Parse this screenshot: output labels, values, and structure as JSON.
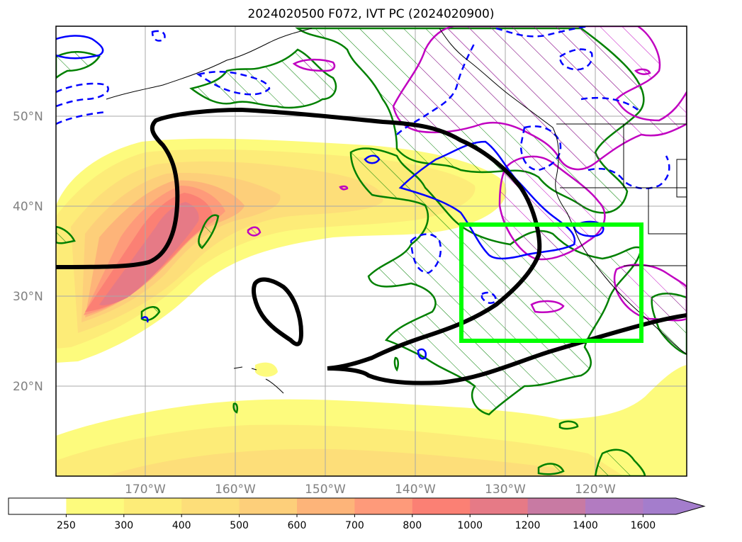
{
  "title": "2024020500 F072, IVT PC (2024020900)",
  "lat_labels": [
    "50°N",
    "40°N",
    "30°N",
    "20°N"
  ],
  "lon_labels": [
    "170°W",
    "160°W",
    "150°W",
    "140°W",
    "130°W",
    "120°W"
  ],
  "colorbar": {
    "ticks": [
      "250",
      "300",
      "400",
      "500",
      "600",
      "700",
      "800",
      "1000",
      "1200",
      "1400",
      "1600"
    ],
    "colors": [
      "#ffffff",
      "#fdfb7d",
      "#fdec78",
      "#fdde79",
      "#fdcf7a",
      "#fdb479",
      "#fe9a7a",
      "#fb8074",
      "#e67a86",
      "#c87aa3",
      "#b27bc1",
      "#a47dcc"
    ],
    "extend": "max"
  },
  "map": {
    "lat_range": [
      10,
      60
    ],
    "lon_range": [
      "180°W",
      "110°W"
    ],
    "ivt_fill": "yellow-orange-red shading of IVT",
    "contour_colors": {
      "black": "#000000",
      "green": "#008000",
      "magenta": "#c000c0",
      "blue": "#0000ff",
      "box": "#00ff00"
    }
  }
}
